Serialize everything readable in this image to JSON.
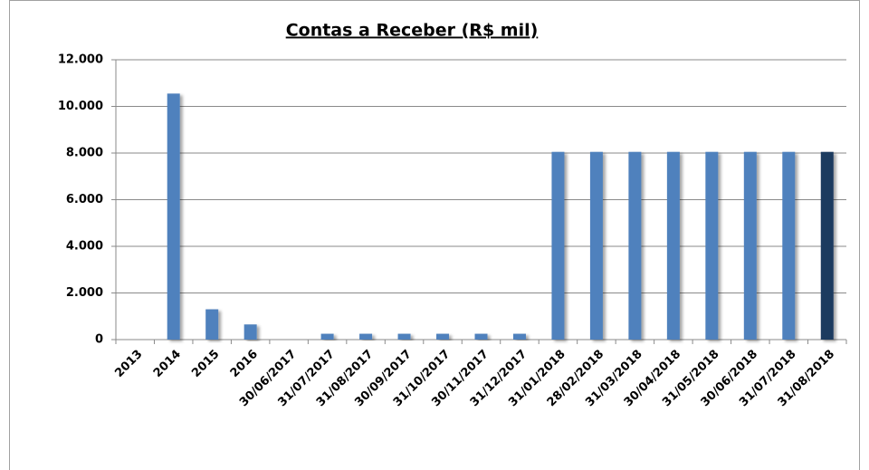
{
  "chart_data": {
    "type": "bar",
    "title": "Contas a Receber (R$ mil)",
    "categories": [
      "2013",
      "2014",
      "2015",
      "2016",
      "30/06/2017",
      "31/07/2017",
      "31/08/2017",
      "30/09/2017",
      "31/10/2017",
      "30/11/2017",
      "31/12/2017",
      "31/01/2018",
      "28/02/2018",
      "31/03/2018",
      "30/04/2018",
      "31/05/2018",
      "30/06/2018",
      "31/07/2018",
      "31/08/2018"
    ],
    "values": [
      0,
      10550,
      1300,
      650,
      0,
      250,
      250,
      250,
      250,
      250,
      250,
      8050,
      8050,
      8050,
      8050,
      8050,
      8050,
      8050,
      8050
    ],
    "colors": [
      "#4f81bd",
      "#4f81bd",
      "#4f81bd",
      "#4f81bd",
      "#4f81bd",
      "#4f81bd",
      "#4f81bd",
      "#4f81bd",
      "#4f81bd",
      "#4f81bd",
      "#4f81bd",
      "#4f81bd",
      "#4f81bd",
      "#4f81bd",
      "#4f81bd",
      "#4f81bd",
      "#4f81bd",
      "#4f81bd",
      "#1f3a5f"
    ],
    "ylim": [
      0,
      12000
    ],
    "yticks": [
      0,
      {
        "value": 2000,
        "label": "2.000"
      },
      {
        "value": 4000,
        "label": "4.000"
      },
      {
        "value": 6000,
        "label": "6.000"
      },
      {
        "value": 8000,
        "label": "8.000"
      },
      {
        "value": 10000,
        "label": "10.000"
      },
      {
        "value": 12000,
        "label": "12.000"
      }
    ],
    "grid": true
  }
}
